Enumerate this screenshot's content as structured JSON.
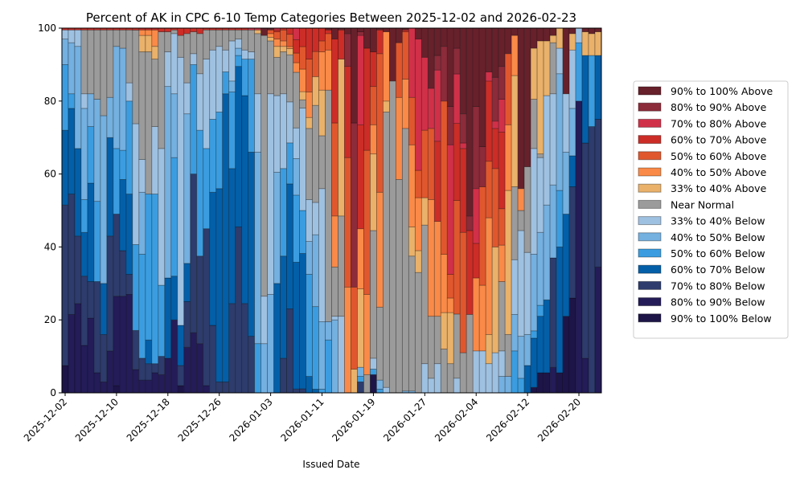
{
  "chart_data": {
    "type": "bar",
    "stacked": true,
    "title": "Percent of AK in CPC 6-10 Temp Categories Between 2025-12-02 and 2026-02-23",
    "xlabel": "Issued Date",
    "ylabel": "",
    "ylim": [
      0,
      100
    ],
    "yticks": [
      "0",
      "20",
      "40",
      "60",
      "80",
      "100"
    ],
    "ytick_values": [
      0,
      20,
      40,
      60,
      80,
      100
    ],
    "xticks": [
      "2025-12-02",
      "2025-12-10",
      "2025-12-18",
      "2025-12-26",
      "2026-01-03",
      "2026-01-11",
      "2026-01-19",
      "2026-01-27",
      "2026-02-04",
      "2026-02-12",
      "2026-02-20"
    ],
    "xtick_day_index": [
      0,
      8,
      16,
      24,
      32,
      40,
      48,
      56,
      64,
      72,
      80
    ],
    "start_date": "2025-12-02",
    "num_days": 84,
    "legend_position": "right",
    "grid": false,
    "categories_order_bottom_to_top": [
      "90% to 100% Below",
      "80% to 90% Below",
      "70% to 80% Below",
      "60% to 70% Below",
      "50% to 60% Below",
      "40% to 50% Below",
      "33% to 40% Below",
      "Near Normal",
      "33% to 40% Above",
      "40% to 50% Above",
      "50% to 60% Above",
      "60% to 70% Above",
      "70% to 80% Above",
      "80% to 90% Above",
      "90% to 100% Above"
    ],
    "legend": [
      {
        "label": "90% to 100% Above",
        "color": "#67212b"
      },
      {
        "label": "80% to 90% Above",
        "color": "#8c2b3a"
      },
      {
        "label": "70% to 80% Above",
        "color": "#d13049"
      },
      {
        "label": "60% to 70% Above",
        "color": "#cc2d27"
      },
      {
        "label": "50% to 60% Above",
        "color": "#e0572e"
      },
      {
        "label": "40% to 50% Above",
        "color": "#fa8a48"
      },
      {
        "label": "33% to 40% Above",
        "color": "#e9b16a"
      },
      {
        "label": "Near Normal",
        "color": "#9b9b9b"
      },
      {
        "label": "33% to 40% Below",
        "color": "#9fc1e1"
      },
      {
        "label": "40% to 50% Below",
        "color": "#74b0e0"
      },
      {
        "label": "50% to 60% Below",
        "color": "#3b9de0"
      },
      {
        "label": "60% to 70% Below",
        "color": "#035fa8"
      },
      {
        "label": "70% to 80% Below",
        "color": "#2d3c6c"
      },
      {
        "label": "80% to 90% Below",
        "color": "#231c58"
      },
      {
        "label": "90% to 100% Below",
        "color": "#1d1547"
      }
    ],
    "series_values_by_day": [
      [
        7.5,
        0,
        44,
        20.5,
        18,
        7,
        2.5,
        0,
        0,
        0,
        0,
        0.5,
        0,
        0,
        0
      ],
      [
        0,
        21.5,
        33,
        23.5,
        4,
        14,
        3.5,
        0,
        0,
        0,
        0,
        0.5,
        0,
        0,
        0
      ],
      [
        0,
        24.5,
        18.5,
        24,
        0,
        28,
        4.5,
        0,
        0,
        0,
        0,
        0.5,
        0,
        0,
        0
      ],
      [
        0,
        13,
        19,
        12,
        9,
        25,
        4,
        17.5,
        0,
        0,
        0,
        0.5,
        0,
        0,
        0
      ],
      [
        0,
        20.5,
        10,
        27,
        15.5,
        9,
        0,
        17.5,
        0,
        0,
        0,
        0.5,
        0,
        0,
        0
      ],
      [
        0,
        5.5,
        25,
        0,
        22,
        28,
        0,
        19,
        0,
        0,
        0,
        0.5,
        0,
        0,
        0
      ],
      [
        0,
        3,
        13,
        14,
        0,
        46,
        0,
        23.5,
        0,
        0,
        0,
        0.5,
        0,
        0,
        0
      ],
      [
        0,
        11.5,
        31.5,
        27,
        0,
        11,
        0,
        18.5,
        0,
        0,
        0,
        0.5,
        0,
        0,
        0
      ],
      [
        2,
        24.5,
        22.5,
        0,
        18,
        28,
        0,
        4.5,
        0,
        0,
        0,
        0.5,
        0,
        0,
        0
      ],
      [
        0,
        26.5,
        12.5,
        19.5,
        8,
        28,
        0,
        5,
        0,
        0,
        0,
        0.5,
        0,
        0,
        0
      ],
      [
        0,
        27,
        5.5,
        22,
        25.5,
        0,
        5,
        14.5,
        0,
        0,
        0,
        0.5,
        0,
        0,
        0
      ],
      [
        0,
        6,
        10,
        0,
        22,
        0,
        31,
        24,
        0,
        0,
        0,
        0.5,
        0,
        0,
        0
      ],
      [
        0,
        3.5,
        6,
        0,
        28.5,
        17,
        9,
        29.5,
        4.5,
        1.5,
        0,
        0.5,
        0,
        0,
        0
      ],
      [
        0,
        3.5,
        4.5,
        6.5,
        40,
        0,
        0,
        39,
        4.5,
        1.5,
        0,
        0.5,
        0,
        0,
        0
      ],
      [
        0,
        5.5,
        2.5,
        0,
        46.5,
        0,
        18.5,
        18.5,
        3.5,
        4.5,
        0,
        0.5,
        0,
        0,
        0
      ],
      [
        0,
        5,
        5,
        0,
        19.5,
        0,
        37.5,
        32,
        0,
        0,
        0,
        1,
        0,
        0,
        0
      ],
      [
        0,
        9.5,
        0,
        22,
        0,
        52.5,
        9.5,
        5.5,
        0,
        0,
        0,
        1,
        0,
        0,
        0
      ],
      [
        0,
        20,
        0,
        12,
        32.5,
        17.5,
        16.5,
        1,
        0,
        0,
        0,
        0.5,
        0,
        0,
        0
      ],
      [
        2,
        0,
        5.5,
        11,
        0,
        0,
        73.5,
        6,
        0,
        0,
        0,
        2,
        0,
        0,
        0
      ],
      [
        0,
        12.5,
        12.5,
        10.5,
        0,
        41,
        8.5,
        13.5,
        0,
        0,
        0,
        1.5,
        0,
        0,
        0
      ],
      [
        0,
        16.5,
        43.5,
        0,
        30,
        0,
        3,
        6,
        0,
        0,
        0,
        1,
        0,
        0,
        0
      ],
      [
        0,
        13.5,
        24,
        0,
        34.5,
        0,
        15.5,
        11,
        0,
        0,
        0,
        1.5,
        0,
        0,
        0
      ],
      [
        0,
        2,
        43,
        0,
        22,
        0,
        24.5,
        8,
        0,
        0,
        0,
        0.5,
        0,
        0,
        0
      ],
      [
        0,
        0,
        18.5,
        36.5,
        20,
        0,
        19,
        5.5,
        0,
        0,
        0,
        0.5,
        0,
        0,
        0
      ],
      [
        0,
        0,
        3,
        53,
        21,
        0,
        18,
        4.5,
        0,
        0,
        0,
        0.5,
        0,
        0,
        0
      ],
      [
        0,
        0,
        3,
        79,
        6,
        0,
        6,
        5.5,
        0,
        0,
        0,
        0.5,
        0,
        0,
        0
      ],
      [
        0,
        0,
        24.5,
        37,
        21,
        3,
        11,
        3,
        0,
        0,
        0,
        0.5,
        0,
        0,
        0
      ],
      [
        0,
        0,
        45.5,
        44,
        3,
        2,
        2.5,
        2.5,
        0,
        0,
        0,
        0.5,
        0,
        0,
        0
      ],
      [
        0,
        0,
        24.5,
        57,
        10,
        0,
        2.5,
        5.5,
        0,
        0,
        0,
        0.5,
        0,
        0,
        0
      ],
      [
        0,
        0,
        15.5,
        50.5,
        25.5,
        0,
        2,
        6,
        0,
        0,
        0,
        0,
        0.5,
        0,
        0
      ],
      [
        0,
        0,
        0,
        0,
        13.5,
        52.5,
        16,
        16.5,
        1,
        0,
        0,
        0,
        0.5,
        0,
        0
      ],
      [
        0,
        0,
        0,
        0,
        0,
        13.5,
        13,
        71.5,
        0,
        0,
        0,
        0,
        0,
        0,
        2
      ],
      [
        0,
        0,
        0,
        0,
        0,
        27,
        55,
        14.5,
        1,
        1,
        1,
        0,
        0,
        0,
        0.5
      ],
      [
        0,
        0,
        0,
        30,
        0,
        30.5,
        21,
        10.5,
        3,
        2,
        2,
        0.5,
        0.5,
        0,
        0
      ],
      [
        0,
        0,
        9.5,
        28,
        24,
        0,
        20.5,
        11.5,
        1.5,
        1.5,
        3,
        0.5,
        0,
        0,
        0
      ],
      [
        0,
        0,
        20.5,
        30.5,
        10,
        0,
        10,
        11.5,
        1.5,
        0.5,
        3,
        1.5,
        0,
        0,
        0
      ],
      [
        0,
        0,
        1,
        33,
        17.5,
        9.5,
        8,
        14.5,
        0,
        2.5,
        2.5,
        3.5,
        3,
        0,
        0
      ],
      [
        0,
        0,
        1,
        33,
        10.5,
        0,
        25,
        2,
        2,
        5.5,
        5.5,
        4.5,
        0,
        0,
        0
      ],
      [
        0,
        0,
        0,
        4.5,
        28,
        9,
        11.5,
        19.5,
        3,
        7,
        9,
        8.5,
        0,
        0,
        0
      ],
      [
        0,
        0,
        0,
        1,
        23,
        20,
        9,
        27,
        8,
        0,
        7,
        6.5,
        0,
        0,
        0
      ],
      [
        0,
        0,
        0,
        0,
        1,
        18.5,
        36.5,
        14.5,
        12.5,
        10.5,
        3,
        3.5,
        0,
        0,
        0
      ],
      [
        0,
        0,
        0,
        0,
        14.5,
        5,
        0,
        63.5,
        0,
        11,
        4.5,
        1,
        0,
        0,
        0.5
      ],
      [
        0,
        0,
        0,
        0,
        0,
        20,
        1,
        13.5,
        0,
        14,
        25.5,
        23,
        0,
        0,
        3
      ],
      [
        0,
        0,
        0,
        0,
        0,
        0,
        21,
        27.5,
        43,
        0,
        0,
        8,
        0,
        0,
        0.5
      ],
      [
        0,
        0,
        0,
        0,
        0,
        0,
        0,
        0,
        0,
        29,
        35.5,
        25,
        0,
        9,
        1.5
      ],
      [
        0,
        0,
        0,
        0,
        0,
        0,
        0,
        0,
        6.5,
        0,
        22.5,
        0,
        0,
        45,
        26
      ],
      [
        0,
        0,
        3,
        0,
        1.5,
        2.5,
        0,
        0,
        21.5,
        16.5,
        0,
        28.5,
        24.5,
        1,
        1
      ],
      [
        0,
        0,
        0,
        0,
        0,
        0,
        0,
        5,
        0,
        22,
        39.5,
        28,
        0,
        0,
        5.5
      ],
      [
        5,
        0,
        0,
        0,
        1.5,
        0,
        3,
        35,
        21,
        8,
        10.5,
        9.5,
        0,
        0,
        6.5
      ],
      [
        0,
        0,
        0,
        0,
        1,
        2.5,
        0,
        20,
        0,
        31.5,
        38,
        6.5,
        0,
        0,
        0.5
      ],
      [
        0,
        0,
        0,
        0,
        0,
        0,
        1.5,
        75.5,
        3,
        19,
        0,
        0,
        0,
        0,
        1
      ],
      [
        0,
        0,
        0,
        0,
        0,
        0,
        0,
        85.5,
        0,
        0,
        0,
        0,
        0,
        0,
        14.5
      ],
      [
        0,
        0,
        0,
        0,
        0,
        0,
        0,
        58.5,
        0,
        22.5,
        15,
        0,
        0,
        0,
        4
      ],
      [
        0,
        0,
        0,
        0,
        0,
        0.5,
        0,
        72,
        0,
        13.5,
        13,
        0.5,
        0,
        0,
        0.5
      ],
      [
        0,
        0,
        0,
        0,
        0,
        0.5,
        0,
        37,
        8,
        22.5,
        13,
        0,
        19,
        0,
        0
      ],
      [
        0,
        0,
        0,
        0,
        0,
        0,
        0,
        33,
        6,
        14.5,
        7.5,
        0,
        36,
        0,
        3
      ],
      [
        0,
        0,
        0,
        0,
        0,
        0,
        8,
        38,
        7.5,
        0,
        18.5,
        0,
        20,
        0,
        8
      ],
      [
        0,
        0,
        0,
        0,
        0,
        0,
        4,
        17,
        0,
        32,
        19.5,
        0,
        11,
        0,
        16.5
      ],
      [
        0,
        0,
        0,
        0,
        0,
        0,
        8,
        13,
        0,
        26,
        0,
        22,
        19.5,
        4,
        7.5
      ],
      [
        0,
        0,
        0,
        0,
        0,
        0,
        0,
        12,
        10,
        16,
        42,
        0,
        0,
        15,
        5
      ],
      [
        0,
        0,
        0,
        0,
        0,
        0,
        0,
        8,
        14,
        4,
        6.5,
        0,
        35.5,
        10.5,
        21.5
      ],
      [
        0,
        0,
        0,
        0,
        0,
        0,
        4,
        17.5,
        0,
        0,
        31,
        21,
        13.5,
        7,
        5.5
      ],
      [
        0,
        0,
        0,
        0,
        0,
        0,
        0,
        11,
        0,
        0,
        33,
        23,
        1.5,
        8,
        23.5
      ],
      [
        0,
        0,
        0,
        0,
        0,
        0,
        0,
        21.5,
        0,
        0,
        0,
        23,
        0,
        4,
        51.5
      ],
      [
        0,
        0,
        0,
        0,
        0,
        0,
        11.5,
        0,
        0,
        20,
        0,
        9.5,
        15,
        22.5,
        21.5
      ],
      [
        0,
        0,
        0,
        0,
        0,
        0,
        11.5,
        0,
        0,
        18,
        27,
        0,
        0,
        11,
        32.5
      ],
      [
        0,
        0,
        0,
        0,
        0,
        0,
        8,
        0,
        8,
        32,
        15.5,
        22,
        2.5,
        0,
        12
      ],
      [
        0,
        0,
        0,
        0,
        0,
        0,
        11,
        0,
        29,
        0,
        21.5,
        11,
        2,
        12,
        13.5
      ],
      [
        0,
        0,
        0,
        0,
        0,
        4.5,
        7,
        19,
        0,
        10,
        10,
        21,
        9,
        9,
        10.5
      ],
      [
        0,
        0,
        0,
        0,
        0,
        4.5,
        0,
        11.5,
        39.5,
        18,
        19.5,
        0,
        0,
        0,
        7
      ],
      [
        0,
        0,
        0,
        0,
        11.5,
        10,
        15,
        20,
        30.5,
        11,
        0,
        0,
        0,
        0,
        2
      ],
      [
        0,
        0,
        0,
        0,
        4,
        11.5,
        29,
        5.5,
        0,
        6,
        0,
        0,
        0,
        0,
        44
      ],
      [
        0,
        0,
        0,
        7.5,
        0,
        8.5,
        22.5,
        23.5,
        0,
        0,
        0,
        0,
        0,
        0,
        38
      ],
      [
        1.5,
        0,
        0,
        13.5,
        2,
        21,
        29,
        13.5,
        14,
        0,
        0,
        0,
        0,
        0,
        5.5
      ],
      [
        5.5,
        0,
        0,
        15.5,
        3,
        20,
        20.5,
        1,
        31,
        0,
        0,
        0,
        0,
        0,
        3.5
      ],
      [
        5.5,
        0,
        0,
        20,
        0,
        26,
        30,
        0,
        15,
        0,
        0,
        0,
        0,
        0,
        3.5
      ],
      [
        0,
        7,
        30,
        0,
        0,
        20,
        25,
        14,
        2,
        0,
        0,
        0,
        0,
        0,
        2
      ],
      [
        5.5,
        0,
        0,
        34.5,
        15.5,
        32,
        7,
        0,
        5.5,
        0,
        0,
        0,
        0,
        0,
        0
      ],
      [
        21,
        0,
        0,
        28,
        0,
        17,
        16,
        0,
        0,
        0,
        0,
        0,
        0,
        0,
        18
      ],
      [
        26,
        0,
        30.5,
        8.5,
        0,
        13,
        16,
        0,
        4.5,
        0,
        0,
        0,
        0,
        0,
        1.5
      ],
      [
        0,
        80,
        0,
        0,
        16,
        0,
        4,
        0,
        0,
        0,
        0,
        0,
        0,
        0,
        0
      ],
      [
        0,
        9.5,
        59,
        24,
        0,
        0,
        0,
        0,
        6.5,
        0,
        0,
        0,
        0,
        0,
        1
      ],
      [
        0,
        0,
        73,
        0,
        19.5,
        0,
        0,
        0,
        6,
        0,
        0,
        0,
        0,
        0,
        1.5
      ],
      [
        0,
        34.5,
        40.5,
        17.5,
        0,
        0,
        0,
        0,
        6.5,
        0,
        0,
        0,
        0,
        0,
        1
      ]
    ]
  }
}
